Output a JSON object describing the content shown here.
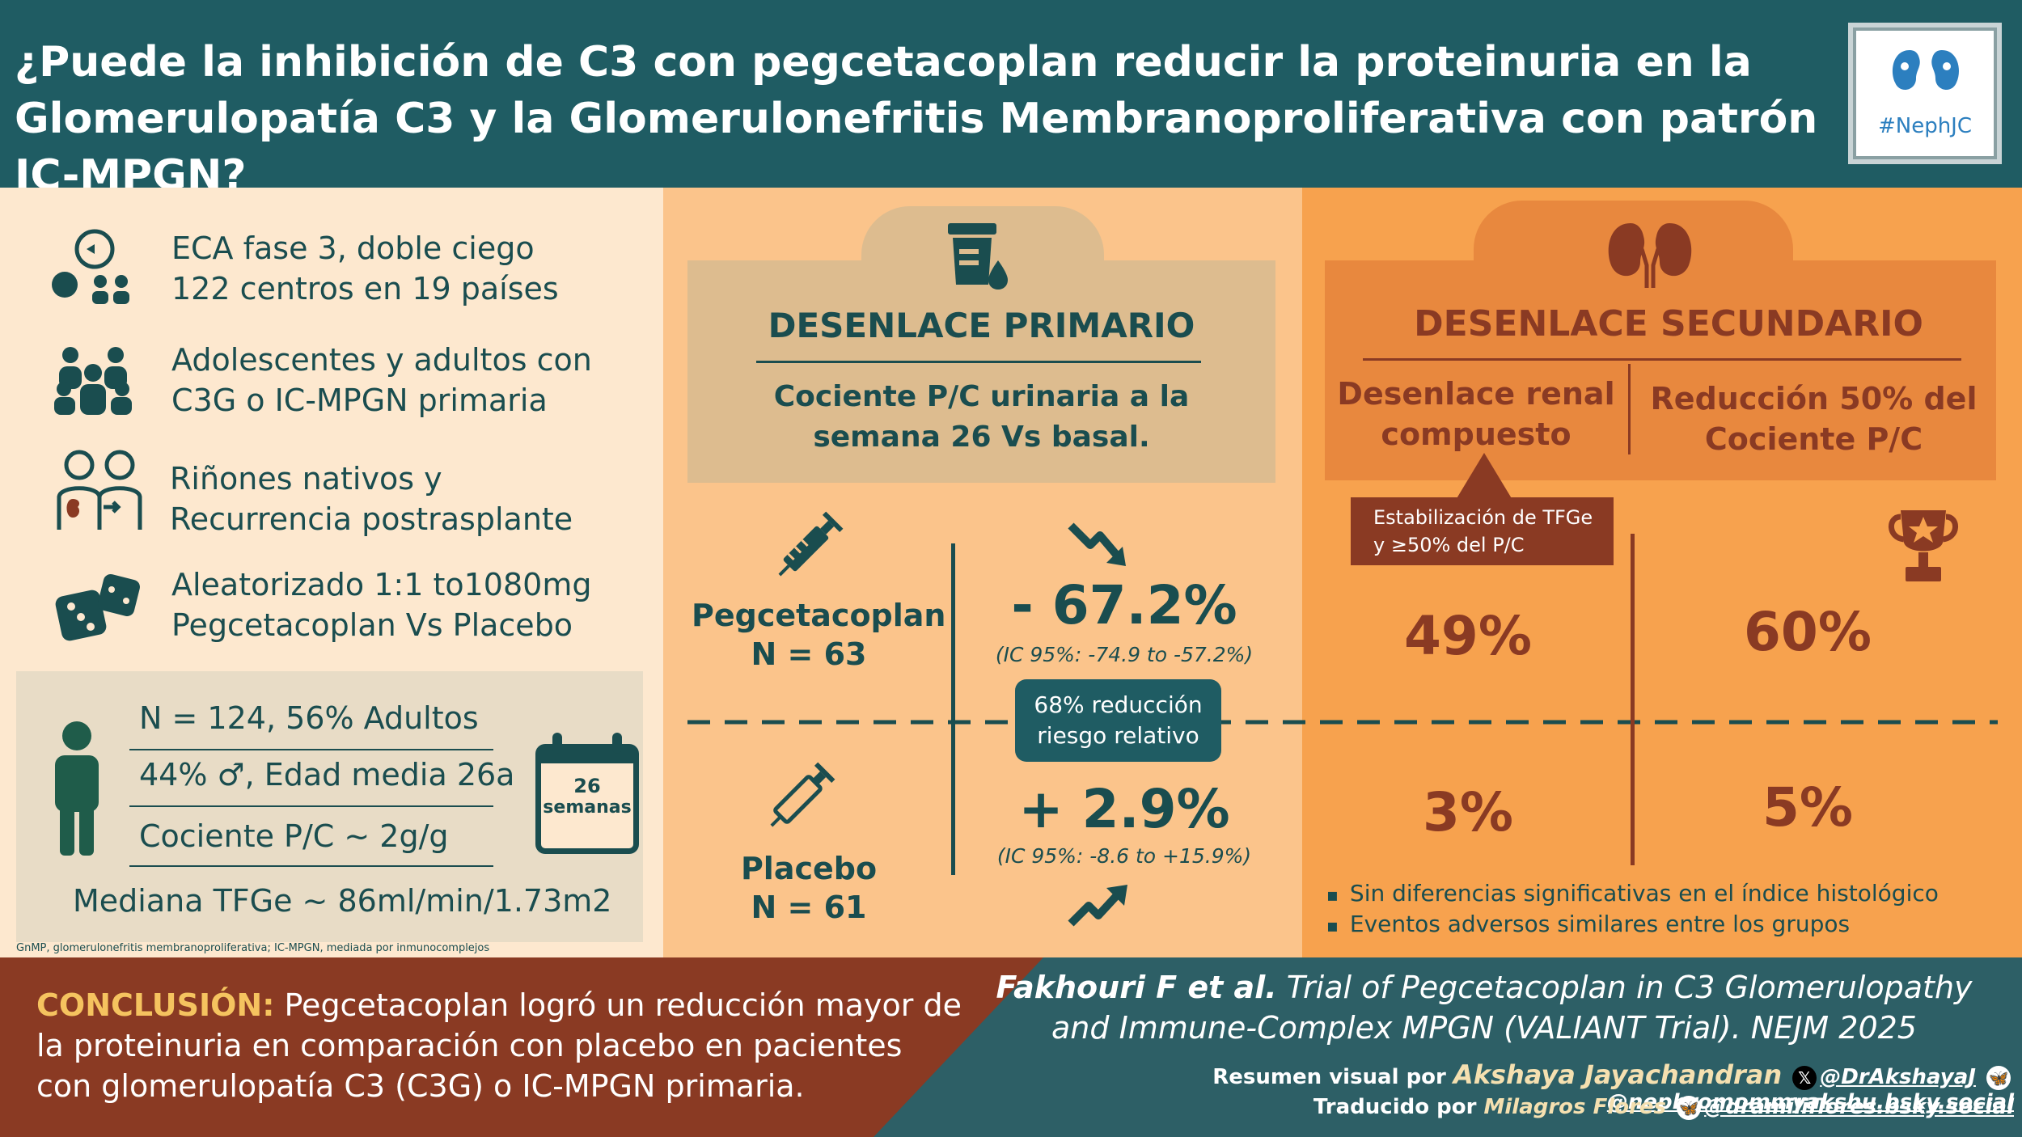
{
  "header": {
    "title": "¿Puede la inhibición de C3 con pegcetacoplan reducir la proteinuria en la Glomerulopatía C3 y la Glomerulonefritis Membranoproliferativa con patrón IC-MPGN?",
    "logo_text": "#NephJC"
  },
  "features": [
    {
      "icon": "trial-icon",
      "line1": "ECA fase 3, doble ciego",
      "line2": "122 centros en 19 países"
    },
    {
      "icon": "people-group-icon",
      "line1": "Adolescentes y adultos con",
      "line2": "C3G o IC-MPGN primaria"
    },
    {
      "icon": "kidney-transplant-icon",
      "line1": "Riñones nativos y",
      "line2": "Recurrencia postrasplante"
    },
    {
      "icon": "dice-icon",
      "line1": "Aleatorizado 1:1 to1080mg",
      "line2": "Pegcetacoplan Vs Placebo"
    }
  ],
  "stats": {
    "n_line": "N = 124, 56% Adultos",
    "sex_line": "44% ♂, Edad media 26a",
    "pc_line": "Cociente P/C ~ 2g/g",
    "egfr_line": "Mediana TFGe ~ 86ml/min/1.73m2",
    "calendar_num": "26",
    "calendar_label": "semanas"
  },
  "footnote": "GnMP, glomerulonefritis membranoproliferativa; IC-MPGN, mediada por inmunocomplejos",
  "primary": {
    "title": "DESENLACE PRIMARIO",
    "subtitle_line1": "Cociente P/C urinaria a la",
    "subtitle_line2": "semana 26 Vs basal.",
    "arm1_name": "Pegcetacoplan",
    "arm1_n": "N = 63",
    "arm1_value": "- 67.2%",
    "arm1_ci": "(IC 95%: -74.9 to -57.2%)",
    "arm2_name": "Placebo",
    "arm2_n": "N = 61",
    "arm2_value": "+ 2.9%",
    "arm2_ci": "(IC 95%: -8.6 to +15.9%)",
    "rr_line1": "68% reducción",
    "rr_line2": "riesgo relativo"
  },
  "secondary": {
    "title": "DESENLACE SECUNDARIO",
    "col1_line1": "Desenlace renal",
    "col1_line2": "compuesto",
    "col2_line1": "Reducción 50% del",
    "col2_line2": "Cociente P/C",
    "tfge_line1": "Estabilización de TFGe",
    "tfge_line2": "y ≥50% del P/C",
    "col1_treat": "49%",
    "col2_treat": "60%",
    "col1_placebo": "3%",
    "col2_placebo": "5%",
    "bullets": [
      "Sin diferencias significativas en el índice histológico",
      "Eventos adversos similares entre los grupos"
    ]
  },
  "conclusion": {
    "label": "CONCLUSIÓN:",
    "text": " Pegcetacoplan logró un reducción mayor de la proteinuria en comparación con placebo en pacientes con glomerulopatía C3 (C3G) o IC-MPGN primaria."
  },
  "citation": {
    "authors": "Fakhouri F et al.",
    "title": " Trial of Pegcetacoplan in C3 Glomerulopathy and Immune-Complex MPGN (VALIANT Trial). NEJM 2025",
    "credit1_label": "Resumen visual por ",
    "credit1_name": "Akshaya Jayachandran",
    "credit1_x": "@DrAkshayaJ",
    "credit1_bsky": "@nephromommyakshu.bsky.social",
    "credit2_label": "Traducido por ",
    "credit2_name": "Milagros Flores",
    "credit2_bsky": "@dramiliflores.bsky.social"
  },
  "colors": {
    "header": "#1f5c63",
    "teal_text": "#1a4d4f",
    "rust": "#8a3a23",
    "primary_bg": "#fbc48b",
    "secondary_bg": "#f7a24e"
  }
}
